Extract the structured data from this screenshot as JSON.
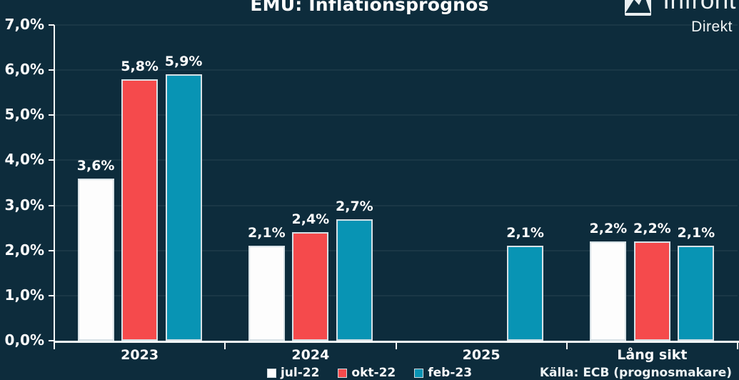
{
  "header": {
    "title": "EMU: Inflationsprognos"
  },
  "logo": {
    "brand": "Infront",
    "product": "Direkt",
    "icon": "mountain-logo-icon"
  },
  "chart_data": {
    "type": "bar",
    "title": "EMU: Inflationsprognos",
    "categories": [
      "2023",
      "2024",
      "2025",
      "Lång sikt"
    ],
    "series": [
      {
        "name": "jul-22",
        "color": "#fdfdfd",
        "values": [
          3.6,
          2.1,
          null,
          2.2
        ]
      },
      {
        "name": "okt-22",
        "color": "#f54a4c",
        "values": [
          5.8,
          2.4,
          null,
          2.2
        ]
      },
      {
        "name": "feb-23",
        "color": "#0894b4",
        "values": [
          5.9,
          2.7,
          2.1,
          2.1
        ]
      }
    ],
    "value_suffix": "%",
    "decimal_separator": ",",
    "data_labels": true,
    "ylim": [
      0,
      7
    ],
    "yticks": [
      "0,0%",
      "1,0%",
      "2,0%",
      "3,0%",
      "4,0%",
      "5,0%",
      "6,0%",
      "7,0%"
    ],
    "grid": true,
    "legend_position": "bottom-center"
  },
  "footer": {
    "source": "Källa: ECB (prognosmakare)"
  }
}
